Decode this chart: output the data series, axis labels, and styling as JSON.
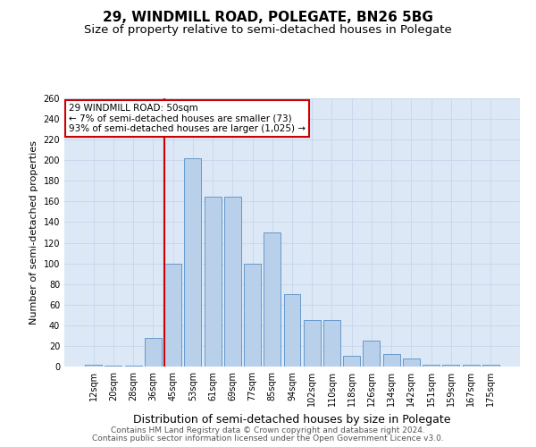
{
  "title": "29, WINDMILL ROAD, POLEGATE, BN26 5BG",
  "subtitle": "Size of property relative to semi-detached houses in Polegate",
  "xlabel": "Distribution of semi-detached houses by size in Polegate",
  "ylabel": "Number of semi-detached properties",
  "categories": [
    "12sqm",
    "20sqm",
    "28sqm",
    "36sqm",
    "45sqm",
    "53sqm",
    "61sqm",
    "69sqm",
    "77sqm",
    "85sqm",
    "94sqm",
    "102sqm",
    "110sqm",
    "118sqm",
    "126sqm",
    "134sqm",
    "142sqm",
    "151sqm",
    "159sqm",
    "167sqm",
    "175sqm"
  ],
  "values": [
    2,
    1,
    1,
    28,
    100,
    202,
    165,
    165,
    100,
    130,
    70,
    45,
    45,
    10,
    25,
    12,
    8,
    2,
    2,
    2,
    2
  ],
  "bar_color": "#b8d0ea",
  "bar_edge_color": "#6699cc",
  "annotation_text": "29 WINDMILL ROAD: 50sqm\n← 7% of semi-detached houses are smaller (73)\n93% of semi-detached houses are larger (1,025) →",
  "annotation_box_color": "#ffffff",
  "annotation_box_edge_color": "#cc0000",
  "redline_x": 3.575,
  "ylim": [
    0,
    260
  ],
  "yticks": [
    0,
    20,
    40,
    60,
    80,
    100,
    120,
    140,
    160,
    180,
    200,
    220,
    240,
    260
  ],
  "grid_color": "#c8d8ec",
  "background_color": "#dce8f5",
  "footer_line1": "Contains HM Land Registry data © Crown copyright and database right 2024.",
  "footer_line2": "Contains public sector information licensed under the Open Government Licence v3.0.",
  "title_fontsize": 11,
  "subtitle_fontsize": 9.5,
  "xlabel_fontsize": 9,
  "ylabel_fontsize": 8,
  "tick_fontsize": 7,
  "footer_fontsize": 6.5
}
